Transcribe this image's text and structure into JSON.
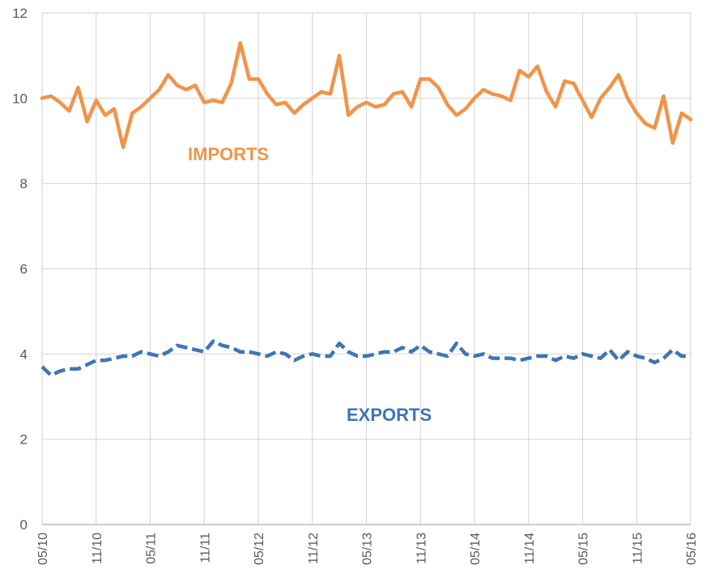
{
  "chart_data": {
    "type": "line",
    "title": "",
    "xlabel": "",
    "ylabel": "",
    "ylim": [
      0,
      12
    ],
    "yticks": [
      0,
      2,
      4,
      6,
      8,
      10,
      12
    ],
    "grid": "vertical and horizontal",
    "x_tick_labels": [
      "05/10",
      "11/10",
      "05/11",
      "11/11",
      "05/12",
      "11/12",
      "05/13",
      "11/13",
      "05/14",
      "11/14",
      "05/15",
      "11/15",
      "05/16"
    ],
    "x": [
      "05/10",
      "06/10",
      "07/10",
      "08/10",
      "09/10",
      "10/10",
      "11/10",
      "12/10",
      "01/11",
      "02/11",
      "03/11",
      "04/11",
      "05/11",
      "06/11",
      "07/11",
      "08/11",
      "09/11",
      "10/11",
      "11/11",
      "12/11",
      "01/12",
      "02/12",
      "03/12",
      "04/12",
      "05/12",
      "06/12",
      "07/12",
      "08/12",
      "09/12",
      "10/12",
      "11/12",
      "12/12",
      "01/13",
      "02/13",
      "03/13",
      "04/13",
      "05/13",
      "06/13",
      "07/13",
      "08/13",
      "09/13",
      "10/13",
      "11/13",
      "12/13",
      "01/14",
      "02/14",
      "03/14",
      "04/14",
      "05/14",
      "06/14",
      "07/14",
      "08/14",
      "09/14",
      "10/14",
      "11/14",
      "12/14",
      "01/15",
      "02/15",
      "03/15",
      "04/15",
      "05/15",
      "06/15",
      "07/15",
      "08/15",
      "09/15",
      "10/15",
      "11/15",
      "12/15",
      "01/16",
      "02/16",
      "03/16",
      "04/16",
      "05/16"
    ],
    "series": [
      {
        "name": "IMPORTS",
        "color": "#F0944A",
        "style": "solid",
        "values": [
          10.0,
          10.05,
          9.9,
          9.7,
          10.25,
          9.45,
          9.95,
          9.6,
          9.75,
          8.85,
          9.65,
          9.8,
          10.0,
          10.2,
          10.55,
          10.3,
          10.2,
          10.3,
          9.9,
          9.95,
          9.9,
          10.35,
          11.3,
          10.45,
          10.45,
          10.1,
          9.85,
          9.9,
          9.65,
          9.85,
          10.0,
          10.15,
          10.1,
          11.0,
          9.6,
          9.8,
          9.9,
          9.8,
          9.85,
          10.1,
          10.15,
          9.8,
          10.45,
          10.45,
          10.25,
          9.85,
          9.6,
          9.75,
          10.0,
          10.2,
          10.1,
          10.05,
          9.95,
          10.65,
          10.5,
          10.75,
          10.15,
          9.8,
          10.4,
          10.35,
          9.95,
          9.55,
          10.0,
          10.25,
          10.55,
          10.0,
          9.65,
          9.4,
          9.3,
          10.05,
          8.95,
          9.65,
          9.5
        ]
      },
      {
        "name": "EXPORTS",
        "color": "#3E75B8",
        "style": "dashed",
        "values": [
          3.7,
          3.5,
          3.6,
          3.65,
          3.65,
          3.75,
          3.85,
          3.85,
          3.9,
          3.95,
          3.95,
          4.05,
          4.0,
          3.95,
          4.05,
          4.2,
          4.15,
          4.1,
          4.05,
          4.3,
          4.2,
          4.15,
          4.05,
          4.05,
          4.0,
          3.95,
          4.05,
          4.0,
          3.85,
          3.95,
          4.0,
          3.95,
          3.95,
          4.25,
          4.05,
          3.95,
          3.95,
          4.0,
          4.05,
          4.05,
          4.15,
          4.05,
          4.2,
          4.05,
          4.0,
          3.95,
          4.25,
          4.0,
          3.95,
          4.0,
          3.9,
          3.9,
          3.9,
          3.85,
          3.9,
          3.95,
          3.95,
          3.85,
          3.95,
          3.9,
          4.0,
          3.95,
          3.9,
          4.1,
          3.85,
          4.05,
          3.95,
          3.9,
          3.8,
          3.9,
          4.1,
          3.95,
          3.95
        ]
      }
    ],
    "annotations": [
      {
        "text": "IMPORTS",
        "series": "IMPORTS",
        "color": "#F0944A"
      },
      {
        "text": "EXPORTS",
        "series": "EXPORTS",
        "color": "#3E75B8"
      }
    ]
  }
}
